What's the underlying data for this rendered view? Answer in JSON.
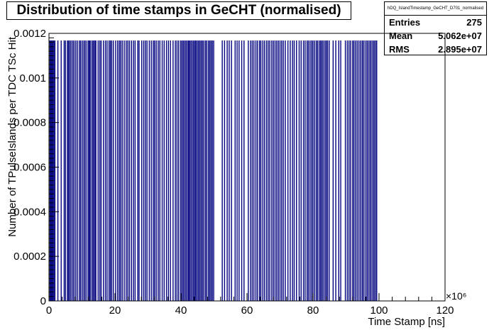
{
  "chart_data": {
    "type": "histogram",
    "title": "Distribution of time stamps in GeCHT (normalised)",
    "xlabel": "Time Stamp [ns]",
    "ylabel": "Number of TPulseIslands per TDC TSc Hit",
    "x_multiplier": "×10⁶",
    "xlim": [
      0,
      120
    ],
    "ylim": [
      0,
      0.0012
    ],
    "x_ticks": [
      "0",
      "20",
      "40",
      "60",
      "80",
      "100",
      "120"
    ],
    "y_ticks": [
      "0",
      "0.0002",
      "0.0004",
      "0.0006",
      "0.0008",
      "0.001",
      "0.0012"
    ],
    "bin_height": 0.001168,
    "bars_x": [
      0.3,
      0.6,
      0.9,
      1.2,
      1.5,
      1.8,
      2.7,
      3.7,
      4.6,
      5.0,
      5.6,
      5.9,
      6.3,
      6.7,
      7.2,
      7.6,
      8.1,
      8.6,
      9.2,
      9.6,
      10.1,
      10.6,
      11.0,
      11.5,
      12.0,
      12.3,
      12.7,
      13.2,
      13.5,
      13.9,
      14.2,
      14.9,
      15.4,
      15.8,
      16.5,
      17.1,
      17.6,
      18.2,
      18.6,
      19.0,
      19.5,
      20.2,
      20.8,
      21.3,
      21.7,
      22.2,
      22.8,
      23.4,
      23.9,
      24.4,
      25.0,
      25.6,
      26.1,
      26.9,
      27.3,
      28.1,
      28.7,
      29.2,
      29.7,
      30.4,
      31.0,
      31.6,
      32.0,
      32.5,
      33.1,
      33.6,
      34.3,
      34.9,
      35.6,
      36.2,
      36.8,
      37.6,
      38.3,
      38.8,
      39.3,
      39.9,
      40.3,
      40.7,
      41.1,
      41.5,
      41.9,
      42.3,
      42.6,
      43.0,
      43.4,
      43.8,
      44.2,
      44.5,
      44.9,
      45.3,
      45.7,
      46.1,
      46.5,
      46.9,
      47.4,
      47.8,
      48.3,
      48.7,
      49.1,
      49.5,
      49.9,
      52.5,
      53.2,
      54.0,
      54.6,
      55.3,
      56.4,
      57.0,
      57.6,
      58.4,
      59.1,
      60.4,
      61.1,
      61.6,
      62.1,
      62.7,
      63.2,
      63.8,
      64.2,
      64.8,
      65.3,
      65.9,
      66.4,
      66.9,
      67.5,
      68.0,
      68.5,
      69.0,
      69.5,
      70.0,
      70.5,
      71.0,
      71.6,
      72.4,
      73.1,
      73.8,
      74.3,
      75.0,
      75.8,
      76.4,
      77.1,
      77.6,
      78.2,
      78.6,
      79.1,
      79.6,
      80.0,
      80.5,
      81.0,
      81.4,
      81.9,
      82.3,
      82.7,
      83.1,
      83.6,
      84.0,
      84.4,
      84.9,
      86.1,
      86.9,
      87.8,
      88.4,
      89.8,
      90.4,
      90.9,
      91.4,
      92.0,
      92.4,
      92.9,
      93.4,
      93.9,
      94.4,
      94.9,
      95.3,
      95.8,
      96.3,
      96.7,
      97.2,
      97.6,
      98.1,
      98.5,
      98.9,
      99.3
    ]
  },
  "stats": {
    "name": "hDQ_IslandTimestamp_GeCHT_D701_normalised",
    "entries_label": "Entries",
    "entries_value": "275",
    "mean_label": "Mean",
    "mean_value": "5.062e+07",
    "rms_label": "RMS",
    "rms_value": "2.895e+07"
  },
  "colors": {
    "bar": "#00007f",
    "axis": "#000000"
  }
}
